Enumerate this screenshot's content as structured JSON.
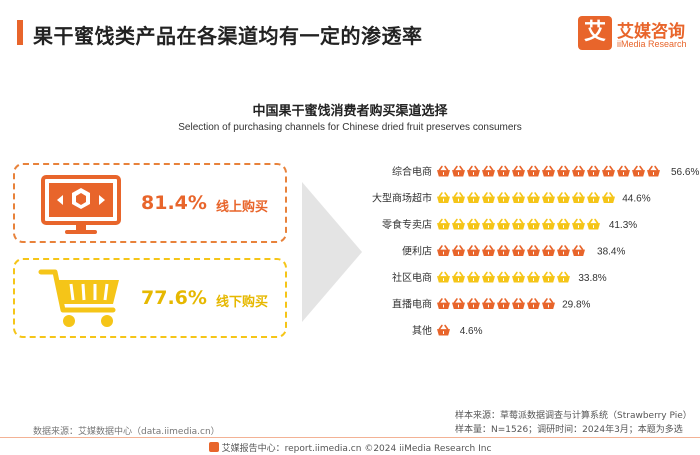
{
  "header": {
    "title": "果干蜜饯类产品在各渠道均有一定的渗透率",
    "logo_mark": "艾",
    "logo_cn": "艾媒咨询",
    "logo_en": "iiMedia Research"
  },
  "summary": {
    "online": {
      "percent": "81.4%",
      "label": "线上购买"
    },
    "offline": {
      "percent": "77.6%",
      "label": "线下购买"
    }
  },
  "chart_data": {
    "type": "bar",
    "orientation": "horizontal",
    "title": "中国果干蜜饯消费者购买渠道选择",
    "subtitle": "Selection of purchasing channels for Chinese dried fruit preserves consumers",
    "categories": [
      "综合电商",
      "大型商场超市",
      "零食专卖店",
      "便利店",
      "社区电商",
      "直播电商",
      "其他"
    ],
    "values": [
      56.6,
      44.6,
      41.3,
      38.4,
      33.8,
      29.8,
      4.6
    ],
    "value_labels": [
      "56.6%",
      "44.6%",
      "41.3%",
      "38.4%",
      "33.8%",
      "29.8%",
      "4.6%"
    ],
    "colors": [
      "#e8652b",
      "#f5c518",
      "#f5c518",
      "#e8652b",
      "#f5c518",
      "#e8652b",
      "#e8652b"
    ],
    "xlim": [
      0,
      56.6
    ]
  },
  "source": {
    "left": "数据来源：艾媒数据中心（data.iimedia.cn）",
    "right_line1": "样本来源：草莓派数据调查与计算系统（Strawberry Pie）",
    "right_line2": "样本量：N=1526；调研时间：2024年3月；本题为多选"
  },
  "footer": {
    "text": "艾媒报告中心：report.iimedia.cn    ©2024  iiMedia Research Inc"
  },
  "colors": {
    "accent": "#e8652b",
    "yellow": "#f5c518",
    "arrow": "#e4e4e4"
  }
}
